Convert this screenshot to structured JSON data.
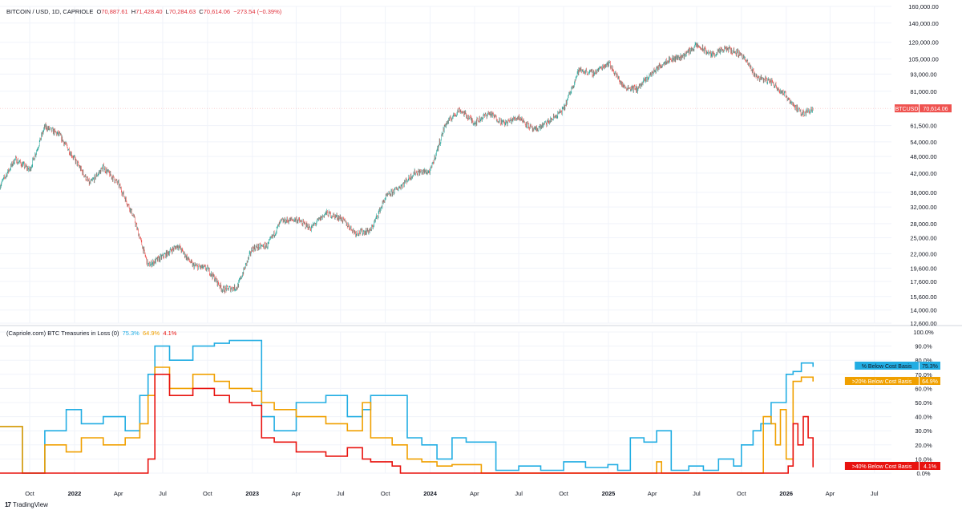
{
  "header": {
    "symbol": "BITCOIN / USD, 1D, CAPRIOLE",
    "open_label": "O",
    "open": "70,887.61",
    "high_label": "H",
    "high": "71,428.40",
    "low_label": "L",
    "low": "70,284.63",
    "close_label": "C",
    "close": "70,614.06",
    "change": "−273.54 (−0.39%)"
  },
  "indicator_header": {
    "name": "(Capriole.com) BTC Treasuries in Loss (0)",
    "v1": "75.3%",
    "v2": "64.9%",
    "v3": "4.1%"
  },
  "branding": {
    "text": "TradingView",
    "logo_icon": "tradingview-logo-icon"
  },
  "colors": {
    "up": "#26a69a",
    "down": "#ef5350",
    "cyan": "#22ade3",
    "orange": "#f0a000",
    "red": "#e8130f",
    "grid": "#f0f3fa"
  },
  "chart_data": [
    {
      "type": "candlestick",
      "title": "BITCOIN / USD, 1D, CAPRIOLE",
      "scale": "log",
      "ylim": [
        12600,
        160000
      ],
      "y_ticks": [
        "160,000.00",
        "140,000.00",
        "120,000.00",
        "105,000.00",
        "93,000.00",
        "81,000.00",
        "61,500.00",
        "54,000.00",
        "48,000.00",
        "42,000.00",
        "36,000.00",
        "32,000.00",
        "28,000.00",
        "25,000.00",
        "22,000.00",
        "19,600.00",
        "17,600.00",
        "15,600.00",
        "14,000.00",
        "12,600.00"
      ],
      "y_tick_values": [
        160000,
        140000,
        120000,
        105000,
        93000,
        81000,
        61500,
        54000,
        48000,
        42000,
        36000,
        32000,
        28000,
        25000,
        22000,
        19600,
        17600,
        15600,
        14000,
        12600
      ],
      "price_label": {
        "name": "BTCUSD",
        "value": "70,614.06"
      },
      "series": [
        {
          "name": "BTCUSD",
          "dates": [
            "2021-08-01",
            "2021-09-01",
            "2021-10-01",
            "2021-11-01",
            "2021-12-01",
            "2022-01-01",
            "2022-02-01",
            "2022-03-01",
            "2022-04-01",
            "2022-05-01",
            "2022-06-01",
            "2022-07-01",
            "2022-08-01",
            "2022-09-01",
            "2022-10-01",
            "2022-11-01",
            "2022-12-01",
            "2023-01-01",
            "2023-02-01",
            "2023-03-01",
            "2023-04-01",
            "2023-05-01",
            "2023-06-01",
            "2023-07-01",
            "2023-08-01",
            "2023-09-01",
            "2023-10-01",
            "2023-11-01",
            "2023-12-01",
            "2024-01-01",
            "2024-02-01",
            "2024-03-01",
            "2024-04-01",
            "2024-05-01",
            "2024-06-01",
            "2024-07-01",
            "2024-08-01",
            "2024-09-01",
            "2024-10-01",
            "2024-11-01",
            "2024-12-01",
            "2025-01-01",
            "2025-02-01",
            "2025-03-01",
            "2025-04-01",
            "2025-05-01",
            "2025-06-01",
            "2025-07-01",
            "2025-08-01",
            "2025-09-01",
            "2025-10-01",
            "2025-11-01",
            "2025-12-01",
            "2026-01-01",
            "2026-02-01",
            "2026-02-25"
          ],
          "close": [
            38000,
            47000,
            43000,
            61000,
            57000,
            47000,
            38500,
            44000,
            38500,
            30000,
            20000,
            21500,
            23500,
            20000,
            19500,
            16500,
            16800,
            23000,
            23500,
            28500,
            29000,
            27000,
            30500,
            29300,
            26000,
            26500,
            34500,
            37800,
            42300,
            42500,
            62000,
            70000,
            63000,
            68000,
            62500,
            66000,
            59000,
            63500,
            70000,
            96000,
            93500,
            102000,
            84000,
            82500,
            94000,
            104000,
            107000,
            117000,
            108500,
            114000,
            109000,
            91000,
            87500,
            78000,
            67500,
            70614
          ]
        }
      ]
    },
    {
      "type": "line",
      "title": "(Capriole.com) BTC Treasuries in Loss (0)",
      "ylim": [
        0,
        100
      ],
      "y_ticks": [
        "100.0%",
        "90.0%",
        "80.0%",
        "70.0%",
        "60.0%",
        "50.0%",
        "40.0%",
        "30.0%",
        "20.0%",
        "10.0%",
        "0.0%"
      ],
      "y_tick_values": [
        100,
        90,
        80,
        70,
        60,
        50,
        40,
        30,
        20,
        10,
        0
      ],
      "x_ticks": [
        "Oct",
        "2022",
        "Apr",
        "Jul",
        "Oct",
        "2023",
        "Apr",
        "Jul",
        "Oct",
        "2024",
        "Apr",
        "Jul",
        "Oct",
        "2025",
        "Apr",
        "Jul",
        "Oct",
        "2026",
        "Apr",
        "Jul"
      ],
      "x_tick_dates": [
        "2021-10-01",
        "2022-01-01",
        "2022-04-01",
        "2022-07-01",
        "2022-10-01",
        "2023-01-01",
        "2023-04-01",
        "2023-07-01",
        "2023-10-01",
        "2024-01-01",
        "2024-04-01",
        "2024-07-01",
        "2024-10-01",
        "2025-01-01",
        "2025-04-01",
        "2025-07-01",
        "2025-10-01",
        "2026-01-01",
        "2026-04-01",
        "2026-07-01"
      ],
      "series": [
        {
          "name": "% Below Cost Basis",
          "color": "#22ade3",
          "last": "75.3%",
          "dates": [
            "2021-08-01",
            "2021-09-15",
            "2021-09-16",
            "2021-11-01",
            "2021-12-15",
            "2022-01-15",
            "2022-03-01",
            "2022-04-15",
            "2022-05-15",
            "2022-06-01",
            "2022-06-15",
            "2022-07-15",
            "2022-09-01",
            "2022-10-15",
            "2022-11-15",
            "2022-12-31",
            "2023-01-20",
            "2023-02-15",
            "2023-04-01",
            "2023-06-01",
            "2023-07-15",
            "2023-08-15",
            "2023-09-01",
            "2023-10-15",
            "2023-11-15",
            "2023-12-15",
            "2024-01-15",
            "2024-02-15",
            "2024-03-15",
            "2024-05-15",
            "2024-07-01",
            "2024-08-15",
            "2024-10-01",
            "2024-11-15",
            "2024-12-31",
            "2025-01-20",
            "2025-02-15",
            "2025-03-15",
            "2025-04-10",
            "2025-05-10",
            "2025-06-15",
            "2025-07-15",
            "2025-08-15",
            "2025-09-15",
            "2025-10-01",
            "2025-10-25",
            "2025-11-10",
            "2025-12-01",
            "2026-01-01",
            "2026-01-15",
            "2026-02-01",
            "2026-02-25"
          ],
          "values": [
            33,
            33,
            0,
            30,
            45,
            35,
            40,
            30,
            55,
            70,
            90,
            80,
            90,
            92,
            94,
            94,
            40,
            30,
            50,
            55,
            40,
            45,
            55,
            55,
            25,
            20,
            10,
            25,
            22,
            2,
            5,
            2,
            8,
            4,
            6,
            2,
            25,
            22,
            30,
            2,
            5,
            2,
            10,
            5,
            20,
            30,
            35,
            50,
            70,
            72,
            78,
            75.3
          ]
        },
        {
          "name": ">20% Below Cost Basis",
          "color": "#f0a000",
          "last": "64.9%",
          "dates": [
            "2021-08-01",
            "2021-09-15",
            "2021-09-16",
            "2021-11-01",
            "2021-12-15",
            "2022-01-15",
            "2022-03-01",
            "2022-04-15",
            "2022-05-15",
            "2022-06-01",
            "2022-06-15",
            "2022-07-15",
            "2022-09-01",
            "2022-10-15",
            "2022-11-15",
            "2022-12-31",
            "2023-01-20",
            "2023-02-15",
            "2023-04-01",
            "2023-06-01",
            "2023-07-15",
            "2023-08-15",
            "2023-09-01",
            "2023-10-15",
            "2023-11-15",
            "2023-12-15",
            "2024-01-15",
            "2024-02-15",
            "2024-04-15",
            "2025-04-01",
            "2025-04-10",
            "2025-04-20",
            "2025-11-10",
            "2025-11-15",
            "2025-12-01",
            "2025-12-10",
            "2025-12-20",
            "2026-01-01",
            "2026-01-15",
            "2026-02-01",
            "2026-02-25"
          ],
          "values": [
            33,
            33,
            0,
            20,
            15,
            25,
            20,
            25,
            35,
            55,
            75,
            60,
            70,
            65,
            60,
            58,
            50,
            45,
            40,
            35,
            30,
            50,
            25,
            20,
            10,
            8,
            5,
            6,
            0,
            0,
            8,
            0,
            0,
            40,
            35,
            20,
            45,
            10,
            65,
            68,
            64.9
          ]
        },
        {
          "name": ">40% Below Cost Basis",
          "color": "#e8130f",
          "last": "4.1%",
          "dates": [
            "2021-08-01",
            "2022-06-01",
            "2022-06-02",
            "2022-06-15",
            "2022-07-15",
            "2022-09-01",
            "2022-10-15",
            "2022-11-15",
            "2022-12-31",
            "2023-01-20",
            "2023-02-15",
            "2023-04-01",
            "2023-06-01",
            "2023-07-15",
            "2023-08-15",
            "2023-09-01",
            "2023-10-15",
            "2023-11-01",
            "2025-12-20",
            "2026-01-05",
            "2026-01-15",
            "2026-01-25",
            "2026-02-05",
            "2026-02-15",
            "2026-02-25"
          ],
          "values": [
            0,
            10,
            10,
            70,
            55,
            60,
            55,
            50,
            48,
            25,
            22,
            15,
            12,
            18,
            10,
            8,
            5,
            0,
            0,
            5,
            35,
            20,
            40,
            25,
            4.1
          ]
        }
      ]
    }
  ]
}
